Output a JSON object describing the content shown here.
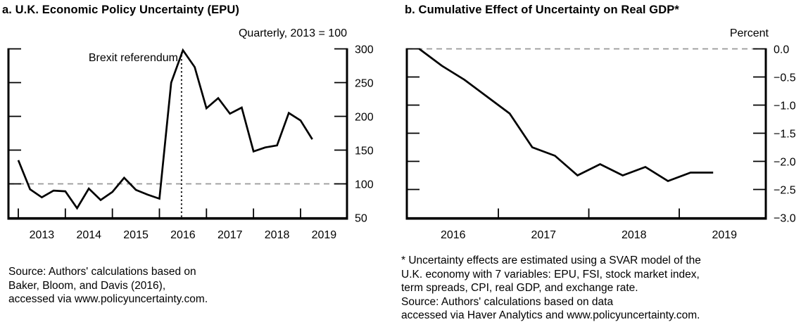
{
  "page": {
    "background": "#ffffff",
    "text_color": "#000000",
    "dashed_line_color": "#999999",
    "series_color": "#000000"
  },
  "chart_data": [
    {
      "id": "epu",
      "type": "line",
      "title": "a. U.K. Economic Policy Uncertainty (EPU)",
      "units_label": "Quarterly, 2013 = 100",
      "series_color": "#000000",
      "ylim": [
        50,
        300
      ],
      "y_ticks": [
        {
          "value": 300,
          "label": "300"
        },
        {
          "value": 250,
          "label": "250"
        },
        {
          "value": 200,
          "label": "200"
        },
        {
          "value": 150,
          "label": "150"
        },
        {
          "value": 100,
          "label": "100"
        },
        {
          "value": 50,
          "label": "50"
        }
      ],
      "x_axis_ticks": [
        2013,
        2014,
        2015,
        2016,
        2017,
        2018,
        2019
      ],
      "x_labels": [
        {
          "year": 2013,
          "label": "2013"
        },
        {
          "year": 2014,
          "label": "2014"
        },
        {
          "year": 2015,
          "label": "2015"
        },
        {
          "year": 2016,
          "label": "2016"
        },
        {
          "year": 2017,
          "label": "2017"
        },
        {
          "year": 2018,
          "label": "2018"
        },
        {
          "year": 2019,
          "label": "2019"
        }
      ],
      "reference_line": {
        "value": 100,
        "style": "dashed",
        "color": "#999999"
      },
      "annotation": {
        "text": "Brexit referendum",
        "x": 2016.47,
        "line_style": "dotted",
        "color": "#000000"
      },
      "x_first": 2013.0,
      "x_step": 0.25,
      "x_quarters": [
        "2013Q1",
        "2013Q2",
        "2013Q3",
        "2013Q4",
        "2014Q1",
        "2014Q2",
        "2014Q3",
        "2014Q4",
        "2015Q1",
        "2015Q2",
        "2015Q3",
        "2015Q4",
        "2016Q1",
        "2016Q2",
        "2016Q3",
        "2016Q4",
        "2017Q1",
        "2017Q2",
        "2017Q3",
        "2017Q4",
        "2018Q1",
        "2018Q2",
        "2018Q3",
        "2018Q4",
        "2019Q1",
        "2019Q2"
      ],
      "values": [
        135,
        92,
        80,
        90,
        89,
        64,
        93,
        76,
        88,
        109,
        91,
        84,
        78,
        250,
        298,
        273,
        212,
        227,
        204,
        213,
        148,
        154,
        157,
        205,
        194,
        166
      ],
      "source_lines": [
        "Source: Authors' calculations based on",
        "Baker, Bloom, and Davis (2016),",
        "accessed via www.policyuncertainty.com."
      ]
    },
    {
      "id": "gdp",
      "type": "line",
      "title": "b. Cumulative Effect of Uncertainty on Real GDP*",
      "units_label": "Percent",
      "series_color": "#000000",
      "ylim": [
        -3.0,
        0.0
      ],
      "y_ticks": [
        {
          "value": 0,
          "label": "0.0"
        },
        {
          "value": -0.5,
          "label": "−0.5"
        },
        {
          "value": -1,
          "label": "−1.0"
        },
        {
          "value": -1.5,
          "label": "−1.5"
        },
        {
          "value": -2,
          "label": "−2.0"
        },
        {
          "value": -2.5,
          "label": "−2.5"
        },
        {
          "value": -3,
          "label": "−3.0"
        }
      ],
      "x_axis_ticks": [
        2017,
        2018,
        2019
      ],
      "x_labels": [
        {
          "year": 2016,
          "label": "2016"
        },
        {
          "year": 2017,
          "label": "2017"
        },
        {
          "year": 2018,
          "label": "2018"
        },
        {
          "year": 2019,
          "label": "2019"
        }
      ],
      "reference_line": {
        "value": 0,
        "style": "dashed",
        "color": "#999999"
      },
      "x_first": 2016.125,
      "x_step": 0.25,
      "x_quarters": [
        "2016Q1",
        "2016Q2",
        "2016Q3",
        "2016Q4",
        "2017Q1",
        "2017Q2",
        "2017Q3",
        "2017Q4",
        "2018Q1",
        "2018Q2",
        "2018Q3",
        "2018Q4",
        "2019Q1",
        "2019Q2"
      ],
      "values": [
        0.0,
        -0.3,
        -0.55,
        -0.85,
        -1.15,
        -1.75,
        -1.9,
        -2.25,
        -2.05,
        -2.25,
        -2.1,
        -2.35,
        -2.2,
        -2.2
      ],
      "footnote_lines": [
        "* Uncertainty effects are estimated using a SVAR model of the",
        "U.K. economy with 7 variables: EPU, FSI, stock market index,",
        "term spreads, CPI, real GDP, and exchange rate.",
        "Source: Authors' calculations based on data",
        "accessed via Haver Analytics and www.policyuncertainty.com."
      ]
    }
  ]
}
